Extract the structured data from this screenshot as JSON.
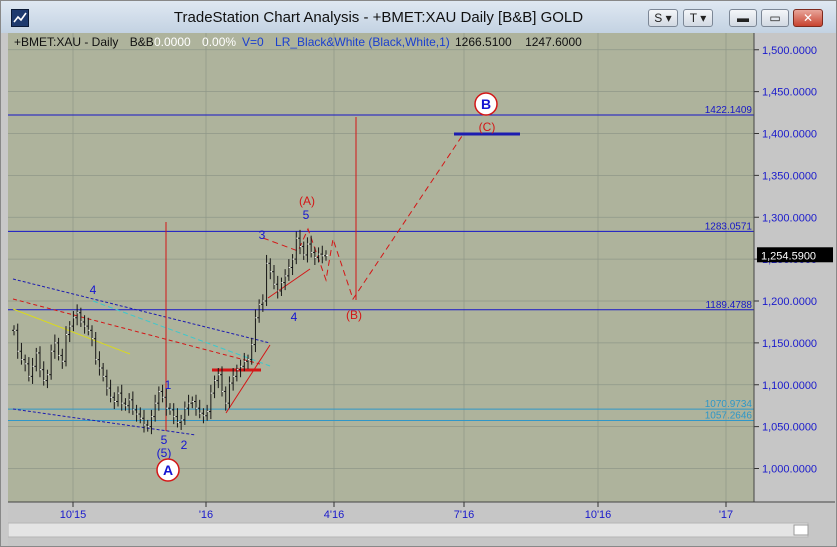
{
  "window": {
    "title": "TradeStation Chart Analysis - +BMET:XAU Daily [B&B] GOLD",
    "buttons": {
      "s": "S",
      "t": "T",
      "min": "▬",
      "max": "▭",
      "close": "✕"
    },
    "icons": {
      "app": "app-icon",
      "dropdown": "chevron-down-icon"
    }
  },
  "header": {
    "symbol": "+BMET:XAU - Daily",
    "bb": "B&B",
    "change": "0.0000",
    "change_pct": "0.00%",
    "volume": "V=0",
    "study": "LR_Black&White (Black,White,1)",
    "val1": "1266.5100",
    "val2": "1247.6000"
  },
  "colors": {
    "plot_bg": "#aeb39c",
    "axis_bg": "#c6c6c6",
    "grid": "#8f9788",
    "h_line": "#1616c8",
    "cyan_line": "#2f97c8",
    "red": "#d41616",
    "blue_label": "#1414d2",
    "dark_price": "#151515"
  },
  "chart_data": {
    "type": "ohlc",
    "price_label": "1,254.5900",
    "y_axis": {
      "min": 960,
      "max": 1520,
      "ticks": [
        "1,500.0000",
        "1,450.0000",
        "1,400.0000",
        "1,350.0000",
        "1,300.0000",
        "1,250.0000",
        "1,200.0000",
        "1,150.0000",
        "1,100.0000",
        "1,050.0000",
        "1,000.0000"
      ]
    },
    "x_axis": {
      "tick_labels": [
        "10'15",
        "'16",
        "4'16",
        "7'16",
        "10'16",
        "'17"
      ]
    },
    "h_levels": [
      {
        "label": "1422.1409",
        "value": 1422.14,
        "color": "h_line"
      },
      {
        "label": "1283.0571",
        "value": 1283.06,
        "color": "h_line"
      },
      {
        "label": "1189.4788",
        "value": 1189.48,
        "color": "h_line"
      },
      {
        "label": "1070.9734",
        "value": 1070.97,
        "color": "cyan_line"
      },
      {
        "label": "1057.2646",
        "value": 1057.26,
        "color": "cyan_line"
      }
    ],
    "close_series": [
      1165,
      1140,
      1130,
      1125,
      1110,
      1122,
      1138,
      1118,
      1105,
      1112,
      1140,
      1150,
      1135,
      1128,
      1160,
      1170,
      1180,
      1186,
      1175,
      1170,
      1165,
      1155,
      1130,
      1120,
      1110,
      1096,
      1085,
      1080,
      1090,
      1078,
      1075,
      1082,
      1070,
      1065,
      1060,
      1052,
      1050,
      1062,
      1078,
      1092,
      1085,
      1072,
      1070,
      1062,
      1055,
      1058,
      1072,
      1078,
      1080,
      1072,
      1066,
      1063,
      1068,
      1090,
      1105,
      1112,
      1092,
      1078,
      1102,
      1110,
      1118,
      1122,
      1128,
      1130,
      1148,
      1180,
      1196,
      1200,
      1245,
      1235,
      1220,
      1212,
      1222,
      1230,
      1240,
      1250,
      1275,
      1265,
      1255,
      1268,
      1258,
      1252,
      1256,
      1254,
      1254.59
    ],
    "waves": [
      {
        "text": "4",
        "color": "blue"
      },
      {
        "text": "1",
        "color": "blue"
      },
      {
        "text": "5",
        "color": "blue"
      },
      {
        "text": "(5)",
        "color": "blue"
      },
      {
        "text": "2",
        "color": "blue"
      },
      {
        "text": "3",
        "color": "blue"
      },
      {
        "text": "(A)",
        "color": "red"
      },
      {
        "text": "5",
        "color": "blue"
      },
      {
        "text": "4",
        "color": "blue"
      },
      {
        "text": "(B)",
        "color": "red"
      },
      {
        "text": "(C)",
        "color": "red"
      }
    ],
    "circles": [
      {
        "text": "A"
      },
      {
        "text": "B"
      }
    ]
  }
}
